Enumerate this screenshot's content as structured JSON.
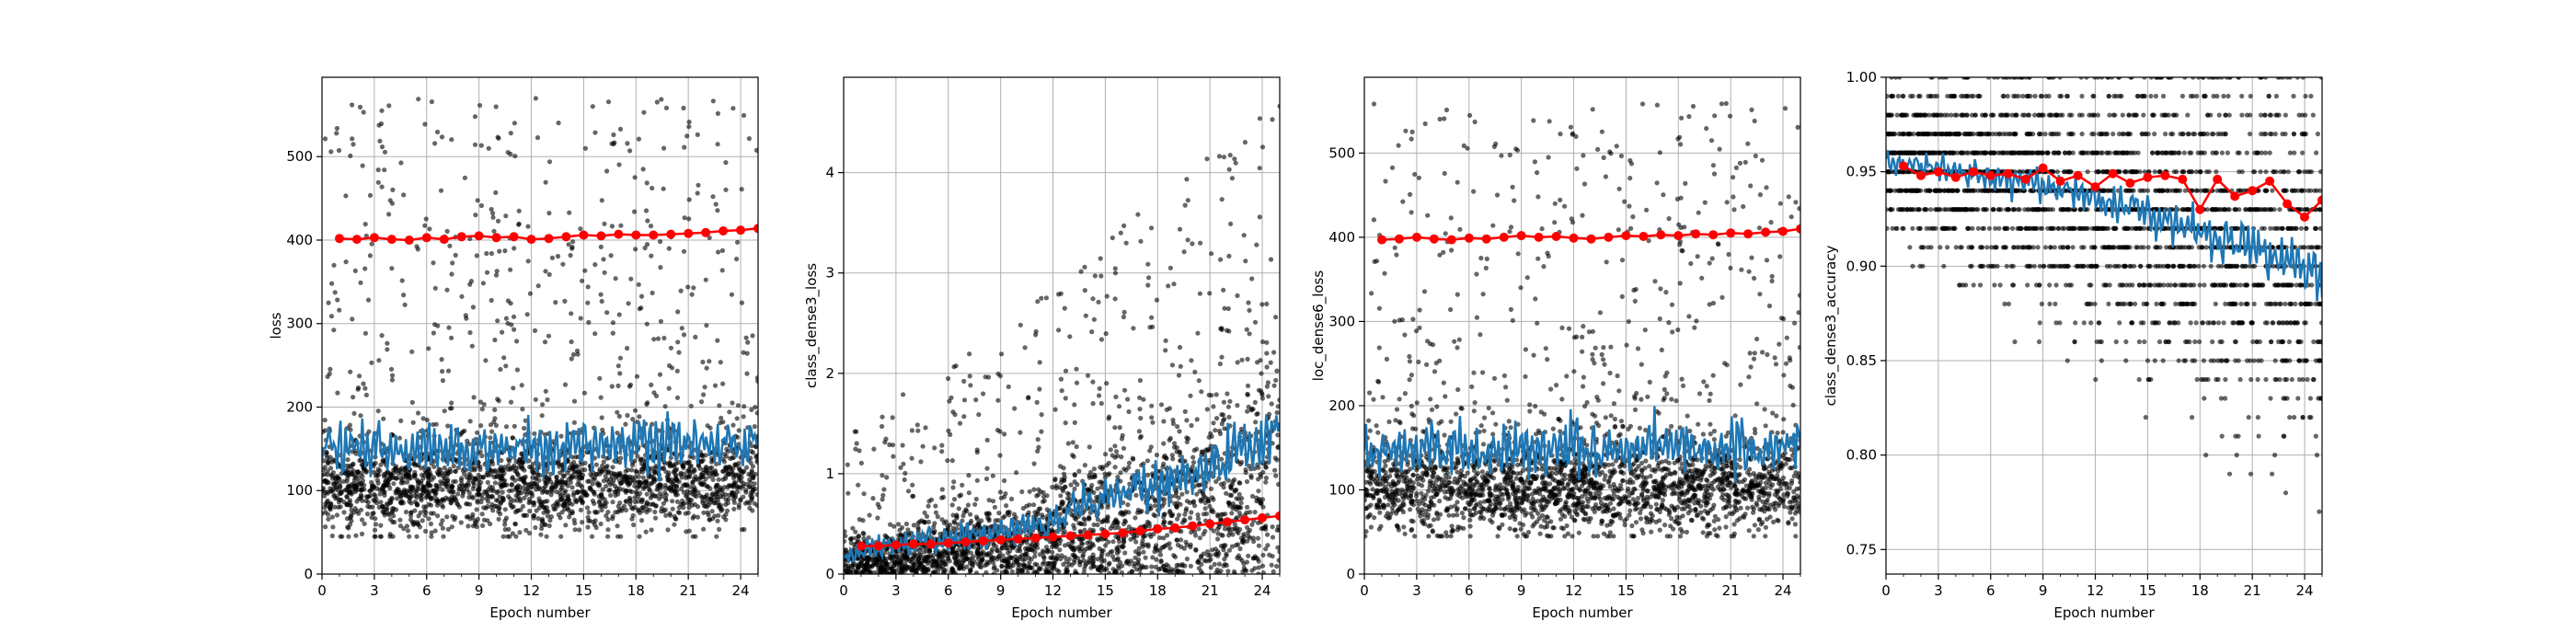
{
  "chart_data": [
    {
      "type": "scatter",
      "xlabel": "Epoch number",
      "ylabel": "loss",
      "xlim": [
        0,
        25
      ],
      "ylim": [
        0,
        595
      ],
      "xticks": [
        0,
        3,
        6,
        9,
        12,
        15,
        18,
        21,
        24
      ],
      "yticks": [
        0,
        100,
        200,
        300,
        400,
        500
      ],
      "grid": true,
      "series": [
        {
          "role": "batch-scatter",
          "color": "#000000",
          "bulk_range": [
            45,
            200
          ],
          "outlier_max": 570
        },
        {
          "role": "moving-average",
          "color": "#1f77b4",
          "x": [
            0,
            2,
            4,
            6,
            8,
            10,
            12,
            14,
            16,
            18,
            20,
            22,
            24,
            25
          ],
          "values": [
            150,
            150,
            148,
            150,
            150,
            151,
            152,
            152,
            153,
            154,
            156,
            158,
            160,
            162
          ]
        },
        {
          "role": "epoch-mean",
          "color": "#ff0000",
          "x": [
            1,
            2,
            3,
            4,
            5,
            6,
            7,
            8,
            9,
            10,
            11,
            12,
            13,
            14,
            15,
            16,
            17,
            18,
            19,
            20,
            21,
            22,
            23,
            24,
            25
          ],
          "values": [
            402,
            401,
            403,
            401,
            400,
            403,
            401,
            404,
            405,
            403,
            404,
            401,
            402,
            404,
            406,
            405,
            407,
            406,
            406,
            407,
            408,
            409,
            411,
            412,
            414
          ]
        }
      ]
    },
    {
      "type": "scatter",
      "xlabel": "Epoch number",
      "ylabel": "class_dense3_loss",
      "xlim": [
        0,
        25
      ],
      "ylim": [
        0,
        4.95
      ],
      "xticks": [
        0,
        3,
        6,
        9,
        12,
        15,
        18,
        21,
        24
      ],
      "yticks": [
        0,
        1,
        2,
        3,
        4
      ],
      "grid": true,
      "series": [
        {
          "role": "batch-scatter",
          "color": "#000000",
          "bulk_range": [
            0,
            2.6
          ],
          "outlier_max": 4.7
        },
        {
          "role": "moving-average",
          "color": "#1f77b4",
          "x": [
            0,
            2,
            4,
            6,
            8,
            10,
            12,
            14,
            16,
            18,
            20,
            22,
            24,
            25
          ],
          "values": [
            0.2,
            0.25,
            0.3,
            0.35,
            0.4,
            0.45,
            0.55,
            0.7,
            0.8,
            0.9,
            1.0,
            1.15,
            1.35,
            1.5
          ]
        },
        {
          "role": "epoch-mean",
          "color": "#ff0000",
          "x": [
            1,
            2,
            3,
            4,
            5,
            6,
            7,
            8,
            9,
            10,
            11,
            12,
            13,
            14,
            15,
            16,
            17,
            18,
            19,
            20,
            21,
            22,
            23,
            24,
            25
          ],
          "values": [
            0.28,
            0.28,
            0.29,
            0.3,
            0.3,
            0.31,
            0.32,
            0.33,
            0.34,
            0.35,
            0.36,
            0.37,
            0.38,
            0.39,
            0.4,
            0.41,
            0.43,
            0.45,
            0.46,
            0.48,
            0.5,
            0.52,
            0.54,
            0.56,
            0.58
          ]
        }
      ]
    },
    {
      "type": "scatter",
      "xlabel": "Epoch number",
      "ylabel": "loc_dense6_loss",
      "xlim": [
        0,
        25
      ],
      "ylim": [
        0,
        590
      ],
      "xticks": [
        0,
        3,
        6,
        9,
        12,
        15,
        18,
        21,
        24
      ],
      "yticks": [
        0,
        100,
        200,
        300,
        400,
        500
      ],
      "grid": true,
      "series": [
        {
          "role": "batch-scatter",
          "color": "#000000",
          "bulk_range": [
            45,
            200
          ],
          "outlier_max": 560
        },
        {
          "role": "moving-average",
          "color": "#1f77b4",
          "x": [
            0,
            2,
            4,
            6,
            8,
            10,
            12,
            14,
            16,
            18,
            20,
            22,
            24,
            25
          ],
          "values": [
            148,
            147,
            146,
            147,
            148,
            148,
            149,
            149,
            150,
            150,
            151,
            152,
            153,
            154
          ]
        },
        {
          "role": "epoch-mean",
          "color": "#ff0000",
          "x": [
            1,
            2,
            3,
            4,
            5,
            6,
            7,
            8,
            9,
            10,
            11,
            12,
            13,
            14,
            15,
            16,
            17,
            18,
            19,
            20,
            21,
            22,
            23,
            24,
            25
          ],
          "values": [
            397,
            398,
            400,
            398,
            397,
            399,
            398,
            400,
            402,
            400,
            401,
            399,
            398,
            400,
            402,
            401,
            403,
            402,
            404,
            403,
            405,
            404,
            406,
            407,
            410
          ]
        }
      ]
    },
    {
      "type": "scatter",
      "xlabel": "Epoch number",
      "ylabel": "class_dense3_accuracy",
      "xlim": [
        0,
        25
      ],
      "ylim": [
        0.737,
        1.0
      ],
      "xticks": [
        0,
        3,
        6,
        9,
        12,
        15,
        18,
        21,
        24
      ],
      "yticks": [
        0.75,
        0.8,
        0.85,
        0.9,
        0.95,
        1.0
      ],
      "yticklabels": [
        "0.75",
        "0.80",
        "0.85",
        "0.90",
        "0.95",
        "1.00"
      ],
      "grid": true,
      "series": [
        {
          "role": "batch-scatter",
          "color": "#000000",
          "quantized_levels": [
            0.84,
            0.85,
            0.86,
            0.87,
            0.88,
            0.89,
            0.9,
            0.91,
            0.92,
            0.93,
            0.94,
            0.95,
            0.96,
            0.97,
            0.98,
            0.99,
            1.0
          ],
          "outlier_min": 0.75
        },
        {
          "role": "moving-average",
          "color": "#1f77b4",
          "x": [
            0,
            2,
            4,
            6,
            8,
            10,
            12,
            14,
            16,
            18,
            20,
            22,
            24,
            25
          ],
          "values": [
            0.955,
            0.953,
            0.95,
            0.948,
            0.945,
            0.94,
            0.935,
            0.93,
            0.925,
            0.92,
            0.912,
            0.905,
            0.898,
            0.89
          ]
        },
        {
          "role": "epoch-mean",
          "color": "#ff0000",
          "x": [
            1,
            2,
            3,
            4,
            5,
            6,
            7,
            8,
            9,
            10,
            11,
            12,
            13,
            14,
            15,
            16,
            17,
            18,
            19,
            20,
            21,
            22,
            23,
            24,
            25
          ],
          "values": [
            0.953,
            0.948,
            0.95,
            0.947,
            0.95,
            0.948,
            0.949,
            0.946,
            0.952,
            0.945,
            0.948,
            0.942,
            0.949,
            0.944,
            0.947,
            0.948,
            0.946,
            0.93,
            0.946,
            0.937,
            0.94,
            0.945,
            0.933,
            0.926,
            0.935
          ]
        }
      ]
    }
  ]
}
